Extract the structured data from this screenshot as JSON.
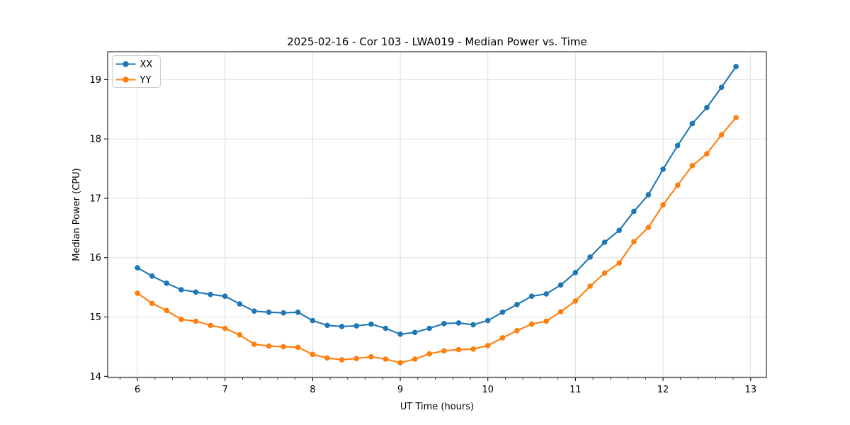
{
  "figure": {
    "background": "#ffffff"
  },
  "chart_data": {
    "type": "line",
    "title": "2025-02-16 - Cor 103 - LWA019 - Median Power vs. Time",
    "xlabel": "UT Time (hours)",
    "ylabel": "Median Power (CPU)",
    "xlim": [
      5.66,
      13.18
    ],
    "ylim": [
      13.98,
      19.47
    ],
    "x_ticks": [
      6,
      7,
      8,
      9,
      10,
      11,
      12,
      13
    ],
    "x_minor_step": 0.2,
    "y_ticks": [
      14,
      15,
      16,
      17,
      18,
      19
    ],
    "grid": "major",
    "legend_position": "upper-left",
    "x": [
      6.0,
      6.167,
      6.333,
      6.5,
      6.667,
      6.833,
      7.0,
      7.167,
      7.333,
      7.5,
      7.667,
      7.833,
      8.0,
      8.167,
      8.333,
      8.5,
      8.667,
      8.833,
      9.0,
      9.167,
      9.333,
      9.5,
      9.667,
      9.833,
      10.0,
      10.167,
      10.333,
      10.5,
      10.667,
      10.833,
      11.0,
      11.167,
      11.333,
      11.5,
      11.667,
      11.833,
      12.0,
      12.167,
      12.333,
      12.5,
      12.667,
      12.833
    ],
    "series": [
      {
        "name": "XX",
        "color": "#1f77b4",
        "values": [
          15.83,
          15.69,
          15.57,
          15.46,
          15.42,
          15.38,
          15.35,
          15.22,
          15.1,
          15.08,
          15.07,
          15.08,
          14.94,
          14.86,
          14.84,
          14.85,
          14.88,
          14.81,
          14.71,
          14.74,
          14.81,
          14.89,
          14.9,
          14.87,
          14.94,
          15.08,
          15.21,
          15.35,
          15.39,
          15.54,
          15.75,
          16.01,
          16.26,
          16.46,
          16.78,
          17.06,
          17.49,
          17.89,
          18.26,
          18.53,
          18.87,
          19.22
        ]
      },
      {
        "name": "YY",
        "color": "#ff7f0e",
        "values": [
          15.4,
          15.23,
          15.11,
          14.96,
          14.93,
          14.86,
          14.81,
          14.7,
          14.54,
          14.51,
          14.5,
          14.49,
          14.37,
          14.31,
          14.28,
          14.3,
          14.33,
          14.29,
          14.23,
          14.29,
          14.38,
          14.43,
          14.45,
          14.46,
          14.52,
          14.65,
          14.77,
          14.88,
          14.93,
          15.09,
          15.27,
          15.52,
          15.74,
          15.91,
          16.27,
          16.51,
          16.89,
          17.22,
          17.55,
          17.75,
          18.07,
          18.36
        ]
      }
    ]
  },
  "styles": {
    "grid_color": "#e0e0e0",
    "frame_color": "#000000",
    "tick_color": "#000000",
    "legend_border": "#cccccc",
    "legend_bg": "#ffffff"
  }
}
